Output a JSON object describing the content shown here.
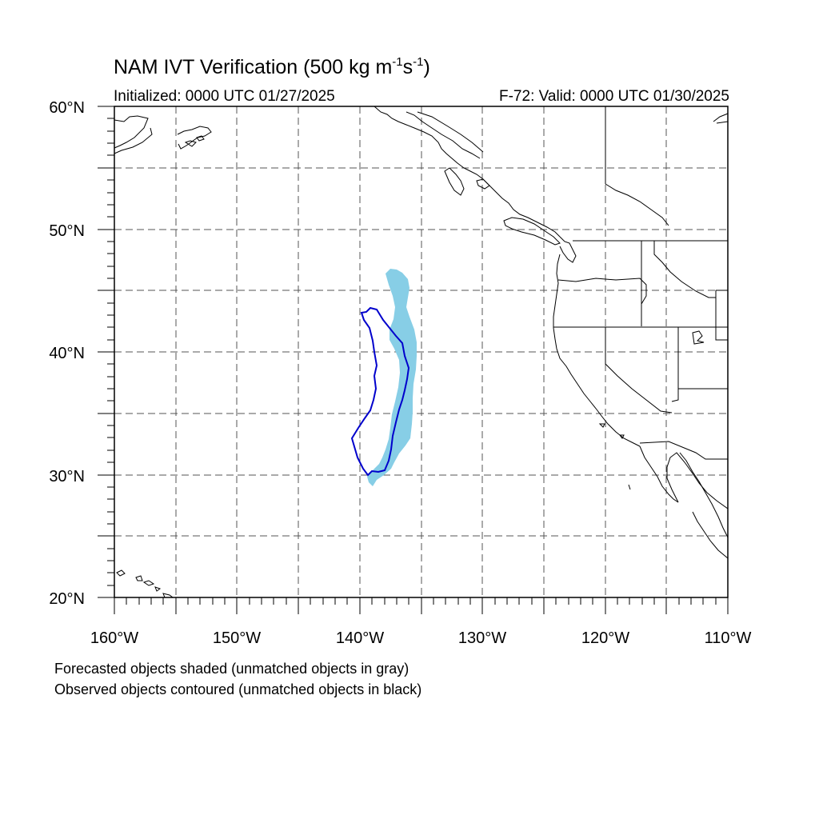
{
  "title": {
    "prefix": "NAM IVT Verification (500 kg m",
    "exp1": "-1",
    "middle": "s",
    "exp2": "-1",
    "suffix": ")"
  },
  "initialized_label": "Initialized: 0000 UTC 01/27/2025",
  "valid_label": "F-72: Valid: 0000 UTC 01/30/2025",
  "lat_labels": [
    "60°N",
    "50°N",
    "40°N",
    "30°N",
    "20°N"
  ],
  "lon_labels": [
    "160°W",
    "150°W",
    "140°W",
    "130°W",
    "120°W",
    "110°W"
  ],
  "legend": {
    "forecast_note": "Forecasted objects shaded (unmatched objects in gray)",
    "observed_note": "Observed objects contoured (unmatched objects in black)"
  },
  "colors": {
    "forecast_fill": "#87CEE6",
    "observed_contour": "#0000CC",
    "coastline": "#000000",
    "grid": "#555555"
  },
  "map_extent": {
    "lon_min": -160,
    "lon_max": -110,
    "lat_min": 20,
    "lat_max": 60
  }
}
